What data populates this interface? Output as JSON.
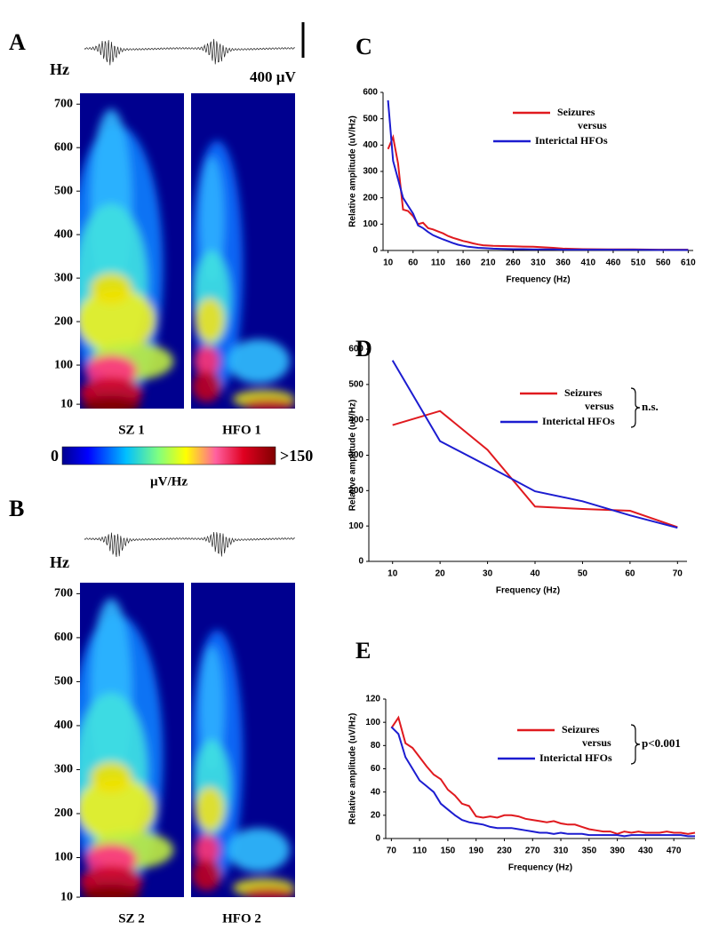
{
  "spectrograms": [
    {
      "panel_label": "A",
      "hz_label": "Hz",
      "scale_bar_label": "400 µV",
      "ylim": [
        0,
        725
      ],
      "yticks": [
        10,
        100,
        200,
        300,
        400,
        500,
        600,
        700
      ],
      "trace_labels": [
        "SZ 1",
        "HFO 1"
      ]
    },
    {
      "panel_label": "B",
      "hz_label": "Hz",
      "ylim": [
        0,
        725
      ],
      "yticks": [
        10,
        100,
        200,
        300,
        400,
        500,
        600,
        700
      ],
      "trace_labels": [
        "SZ 2",
        "HFO 2"
      ]
    }
  ],
  "colorbar": {
    "min_label": "0",
    "max_label": ">150",
    "unit": "µV/Hz"
  },
  "chart_data": [
    {
      "type": "line",
      "panel_label": "C",
      "xlabel": "Frequency (Hz)",
      "ylabel": "Relative amplitude (uV/Hz)",
      "x": [
        10,
        20,
        30,
        40,
        50,
        60,
        70,
        80,
        90,
        100,
        110,
        120,
        130,
        140,
        150,
        160,
        170,
        180,
        190,
        200,
        220,
        240,
        260,
        280,
        300,
        320,
        340,
        360,
        400,
        450,
        500,
        550,
        610
      ],
      "xlim": [
        0,
        620
      ],
      "xticks": [
        10,
        60,
        110,
        160,
        210,
        260,
        310,
        360,
        410,
        460,
        510,
        560,
        610
      ],
      "ylim": [
        0,
        600
      ],
      "yticks": [
        0,
        100,
        200,
        300,
        400,
        500,
        600
      ],
      "legend_connector": "versus",
      "series": [
        {
          "name": "Seizures",
          "color": "#e01a1f",
          "values": [
            385,
            430,
            330,
            155,
            150,
            130,
            100,
            105,
            85,
            80,
            72,
            65,
            55,
            48,
            42,
            36,
            32,
            27,
            23,
            20,
            18,
            17,
            16,
            15,
            14,
            12,
            10,
            7,
            5,
            4,
            4,
            3,
            3
          ]
        },
        {
          "name": "Interictal HFOs",
          "color": "#1c1cd0",
          "values": [
            570,
            340,
            270,
            200,
            170,
            140,
            95,
            85,
            70,
            58,
            50,
            42,
            35,
            28,
            22,
            18,
            14,
            12,
            10,
            9,
            7,
            6,
            5,
            5,
            4,
            4,
            4,
            3,
            3,
            3,
            3,
            2,
            2
          ]
        }
      ]
    },
    {
      "type": "line",
      "panel_label": "D",
      "xlabel": "Frequency (Hz)",
      "ylabel": "Relative amplitude (uV/Hz)",
      "x": [
        10,
        20,
        30,
        40,
        50,
        60,
        70
      ],
      "xlim": [
        5,
        72
      ],
      "xticks": [
        10,
        20,
        30,
        40,
        50,
        60,
        70
      ],
      "ylim": [
        0,
        600
      ],
      "yticks": [
        0,
        100,
        200,
        300,
        400,
        500,
        600
      ],
      "legend_connector": "versus",
      "annotation": "n.s.",
      "series": [
        {
          "name": "Seizures",
          "color": "#e01a1f",
          "values": [
            385,
            425,
            315,
            155,
            148,
            143,
            97
          ]
        },
        {
          "name": "Interictal HFOs",
          "color": "#1c1cd0",
          "values": [
            568,
            340,
            270,
            198,
            170,
            130,
            95
          ]
        }
      ]
    },
    {
      "type": "line",
      "panel_label": "E",
      "xlabel": "Frequency (Hz)",
      "ylabel": "Relative amplitude (uV/Hz)",
      "x": [
        70,
        80,
        90,
        100,
        110,
        120,
        130,
        140,
        150,
        160,
        170,
        180,
        190,
        200,
        210,
        220,
        230,
        240,
        250,
        260,
        270,
        280,
        290,
        300,
        310,
        320,
        330,
        340,
        350,
        360,
        370,
        380,
        390,
        400,
        410,
        420,
        430,
        440,
        450,
        460,
        470,
        480,
        490,
        500
      ],
      "xlim": [
        62,
        500
      ],
      "xticks": [
        70,
        110,
        150,
        190,
        230,
        270,
        310,
        350,
        390,
        430,
        470
      ],
      "ylim": [
        0,
        120
      ],
      "yticks": [
        0,
        20,
        40,
        60,
        80,
        100,
        120
      ],
      "legend_connector": "versus",
      "annotation": "p<0.001",
      "series": [
        {
          "name": "Seizures",
          "color": "#e01a1f",
          "values": [
            95,
            104,
            82,
            78,
            70,
            62,
            55,
            51,
            42,
            37,
            30,
            28,
            19,
            18,
            19,
            18,
            20,
            20,
            19,
            17,
            16,
            15,
            14,
            15,
            13,
            12,
            12,
            10,
            8,
            7,
            6,
            6,
            4,
            6,
            5,
            6,
            5,
            5,
            5,
            6,
            5,
            5,
            4,
            5
          ]
        },
        {
          "name": "Interictal HFOs",
          "color": "#1c1cd0",
          "values": [
            96,
            90,
            70,
            60,
            50,
            45,
            40,
            30,
            25,
            20,
            16,
            14,
            13,
            12,
            10,
            9,
            9,
            9,
            8,
            7,
            6,
            5,
            5,
            4,
            5,
            4,
            4,
            4,
            3,
            3,
            3,
            3,
            3,
            2,
            3,
            3,
            3,
            3,
            3,
            3,
            3,
            3,
            2,
            2
          ]
        }
      ]
    }
  ]
}
